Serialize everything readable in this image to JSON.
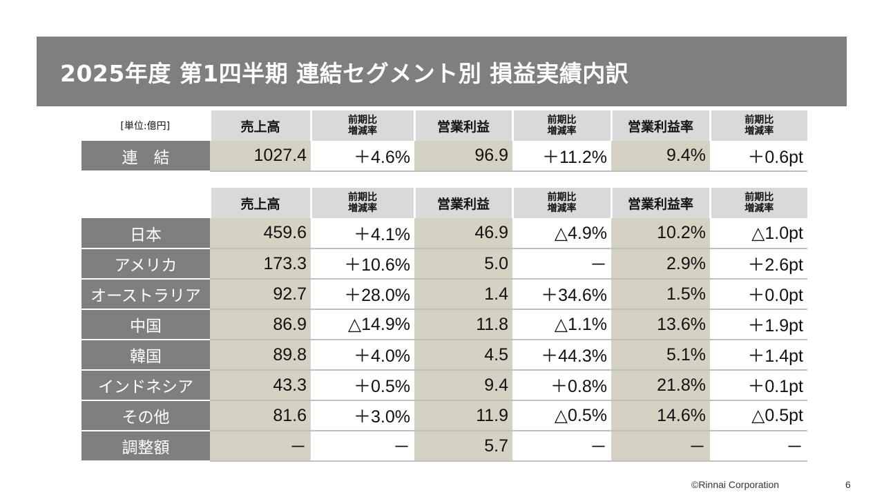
{
  "title": "2025年度 第1四半期 連結セグメント別 損益実績内訳",
  "unit_label": "[単位:億円]",
  "headers": {
    "sales": "売上高",
    "yoy": [
      "前期比",
      "増減率"
    ],
    "op_income": "営業利益",
    "op_margin": "営業利益率"
  },
  "consolidated": {
    "label": "連　結",
    "sales": "1027.4",
    "sales_yoy": "＋4.6%",
    "op": "96.9",
    "op_yoy": "＋11.2%",
    "margin": "9.4%",
    "margin_yoy": "＋0.6pt"
  },
  "segments": [
    {
      "label": "日本",
      "sales": "459.6",
      "sales_yoy": "＋4.1%",
      "op": "46.9",
      "op_yoy": "△4.9%",
      "margin": "10.2%",
      "margin_yoy": "△1.0pt"
    },
    {
      "label": "アメリカ",
      "sales": "173.3",
      "sales_yoy": "＋10.6%",
      "op": "5.0",
      "op_yoy": "－",
      "margin": "2.9%",
      "margin_yoy": "＋2.6pt"
    },
    {
      "label": "オーストラリア",
      "sales": "92.7",
      "sales_yoy": "＋28.0%",
      "op": "1.4",
      "op_yoy": "＋34.6%",
      "margin": "1.5%",
      "margin_yoy": "＋0.0pt"
    },
    {
      "label": "中国",
      "sales": "86.9",
      "sales_yoy": "△14.9%",
      "op": "11.8",
      "op_yoy": "△1.1%",
      "margin": "13.6%",
      "margin_yoy": "＋1.9pt"
    },
    {
      "label": "韓国",
      "sales": "89.8",
      "sales_yoy": "＋4.0%",
      "op": "4.5",
      "op_yoy": "＋44.3%",
      "margin": "5.1%",
      "margin_yoy": "＋1.4pt"
    },
    {
      "label": "インドネシア",
      "sales": "43.3",
      "sales_yoy": "＋0.5%",
      "op": "9.4",
      "op_yoy": "＋0.8%",
      "margin": "21.8%",
      "margin_yoy": "＋0.1pt"
    },
    {
      "label": "その他",
      "sales": "81.6",
      "sales_yoy": "＋3.0%",
      "op": "11.9",
      "op_yoy": "△0.5%",
      "margin": "14.6%",
      "margin_yoy": "△0.5pt"
    },
    {
      "label": "調整額",
      "sales": "－",
      "sales_yoy": "－",
      "op": "5.7",
      "op_yoy": "－",
      "margin": "－",
      "margin_yoy": "－"
    }
  ],
  "footer": {
    "copyright": "©Rinnai Corporation",
    "page": "6"
  }
}
